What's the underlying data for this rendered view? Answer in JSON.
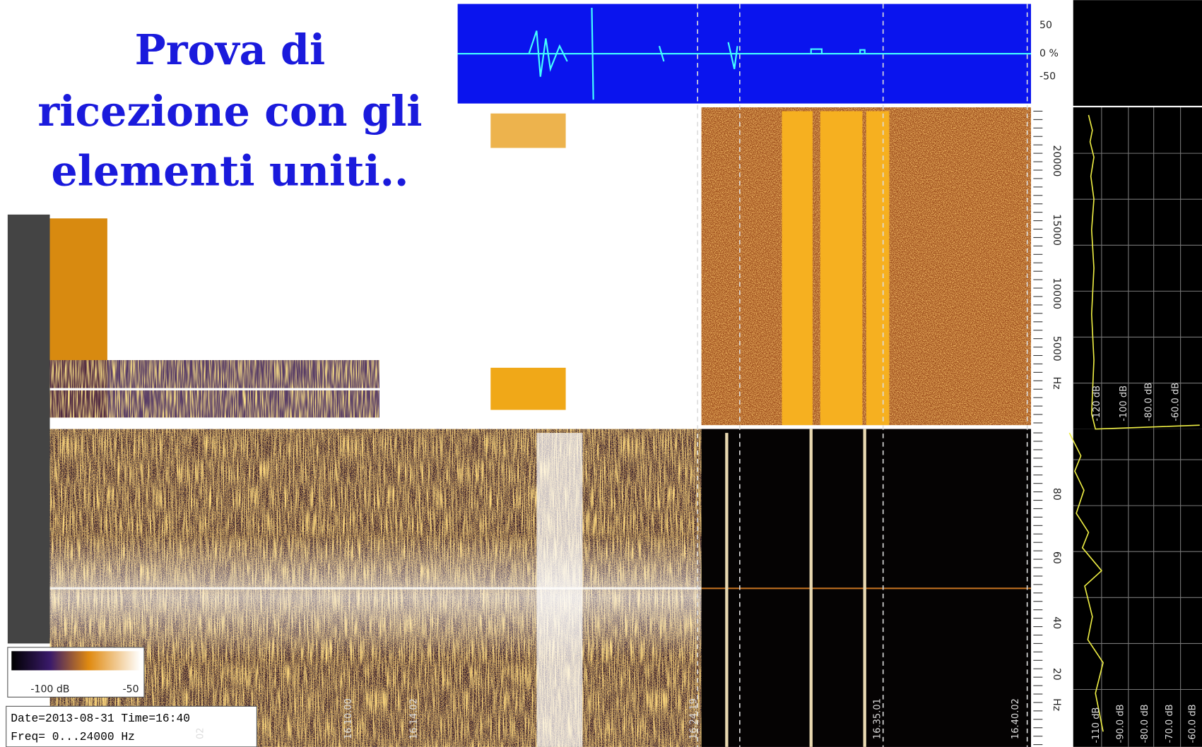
{
  "title": [
    "Prova di",
    "ricezione con gli",
    "elementi uniti.."
  ],
  "waveform_axis": [
    "50",
    "0 %",
    "-50"
  ],
  "upper_freq_axis": [
    "20000",
    "15000",
    "10000",
    "5000",
    "Hz"
  ],
  "upper_level_axis": [
    "-120 dB",
    "-100 dB",
    "-80.0 dB",
    "-60.0 dB"
  ],
  "lower_freq_axis": [
    "80",
    "60",
    "40",
    "20",
    "Hz"
  ],
  "lower_level_axis": [
    "-110 dB",
    "-90.0 dB",
    "-80.0 dB",
    "-70.0 dB",
    "-60.0 dB"
  ],
  "time_labels": [
    "02",
    "16.10.00",
    "16.14.02",
    "16.24.19",
    "16.35.01",
    "16.40.02"
  ],
  "color_scale": [
    "-100 dB",
    "-50"
  ],
  "info": [
    "Date=2013-08-31 Time=16:40",
    "Freq= 0...24000 Hz"
  ]
}
